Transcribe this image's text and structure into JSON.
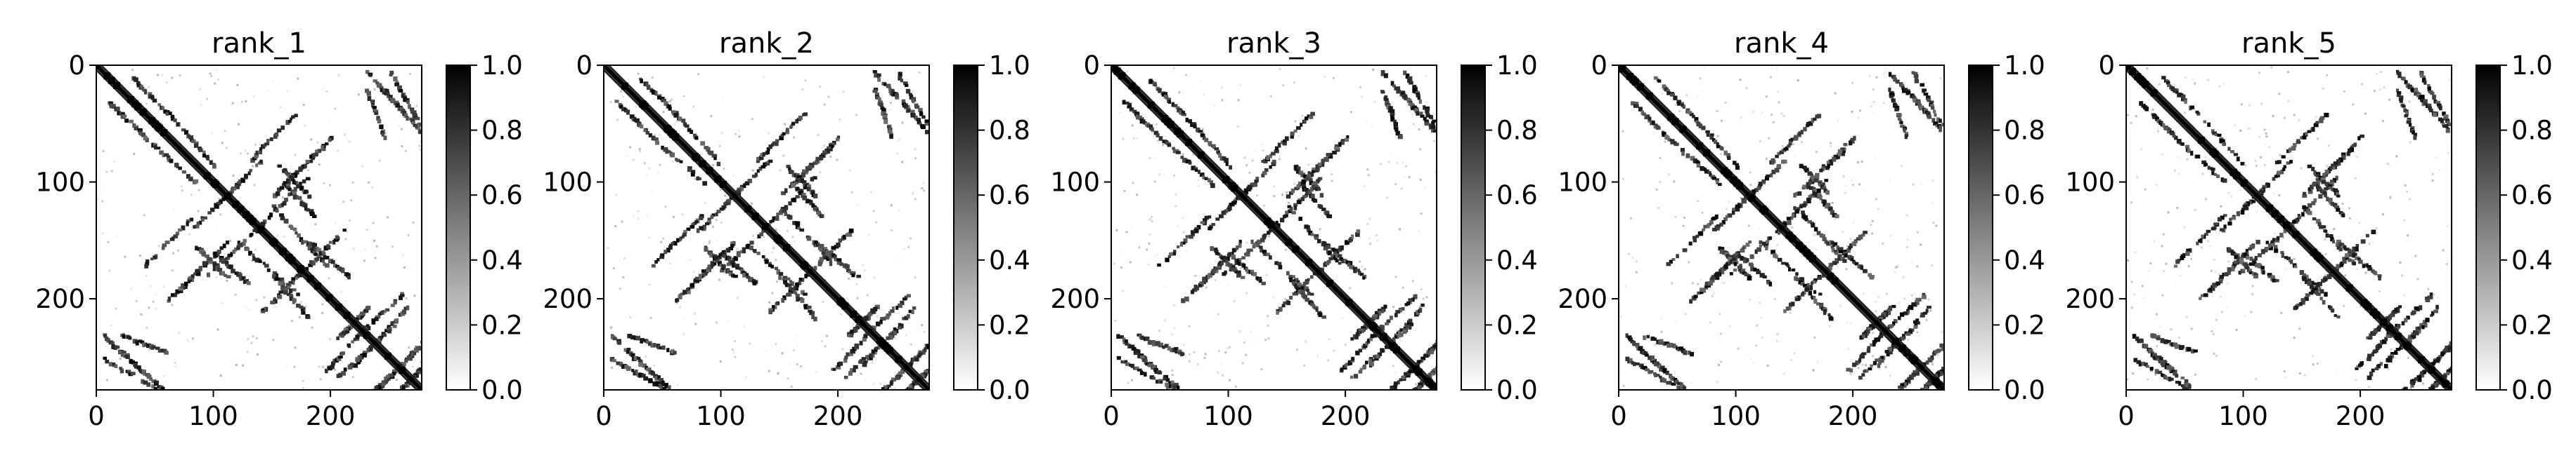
{
  "chart_data": [
    {
      "type": "heatmap",
      "title": "rank_1",
      "xticks": [
        0,
        100,
        200
      ],
      "yticks": [
        0,
        100,
        200
      ],
      "xlim": [
        0,
        278
      ],
      "ylim": [
        278,
        0
      ],
      "colorbar": {
        "range": [
          0.0,
          1.0
        ],
        "ticks": [
          "0.0",
          "0.2",
          "0.4",
          "0.6",
          "0.8",
          "1.0"
        ],
        "colormap": "Greys"
      }
    },
    {
      "type": "heatmap",
      "title": "rank_2",
      "xticks": [
        0,
        100,
        200
      ],
      "yticks": [
        0,
        100,
        200
      ],
      "xlim": [
        0,
        278
      ],
      "ylim": [
        278,
        0
      ],
      "colorbar": {
        "range": [
          0.0,
          1.0
        ],
        "ticks": [
          "0.0",
          "0.2",
          "0.4",
          "0.6",
          "0.8",
          "1.0"
        ],
        "colormap": "Greys"
      }
    },
    {
      "type": "heatmap",
      "title": "rank_3",
      "xticks": [
        0,
        100,
        200
      ],
      "yticks": [
        0,
        100,
        200
      ],
      "xlim": [
        0,
        278
      ],
      "ylim": [
        278,
        0
      ],
      "colorbar": {
        "range": [
          0.0,
          1.0
        ],
        "ticks": [
          "0.0",
          "0.2",
          "0.4",
          "0.6",
          "0.8",
          "1.0"
        ],
        "colormap": "Greys"
      }
    },
    {
      "type": "heatmap",
      "title": "rank_4",
      "xticks": [
        0,
        100,
        200
      ],
      "yticks": [
        0,
        100,
        200
      ],
      "xlim": [
        0,
        278
      ],
      "ylim": [
        278,
        0
      ],
      "colorbar": {
        "range": [
          0.0,
          1.0
        ],
        "ticks": [
          "0.0",
          "0.2",
          "0.4",
          "0.6",
          "0.8",
          "1.0"
        ],
        "colormap": "Greys"
      }
    },
    {
      "type": "heatmap",
      "title": "rank_5",
      "xticks": [
        0,
        100,
        200
      ],
      "yticks": [
        0,
        100,
        200
      ],
      "xlim": [
        0,
        278
      ],
      "ylim": [
        278,
        0
      ],
      "colorbar": {
        "range": [
          0.0,
          1.0
        ],
        "ticks": [
          "0.0",
          "0.2",
          "0.4",
          "0.6",
          "0.8",
          "1.0"
        ],
        "colormap": "Greys"
      }
    }
  ]
}
